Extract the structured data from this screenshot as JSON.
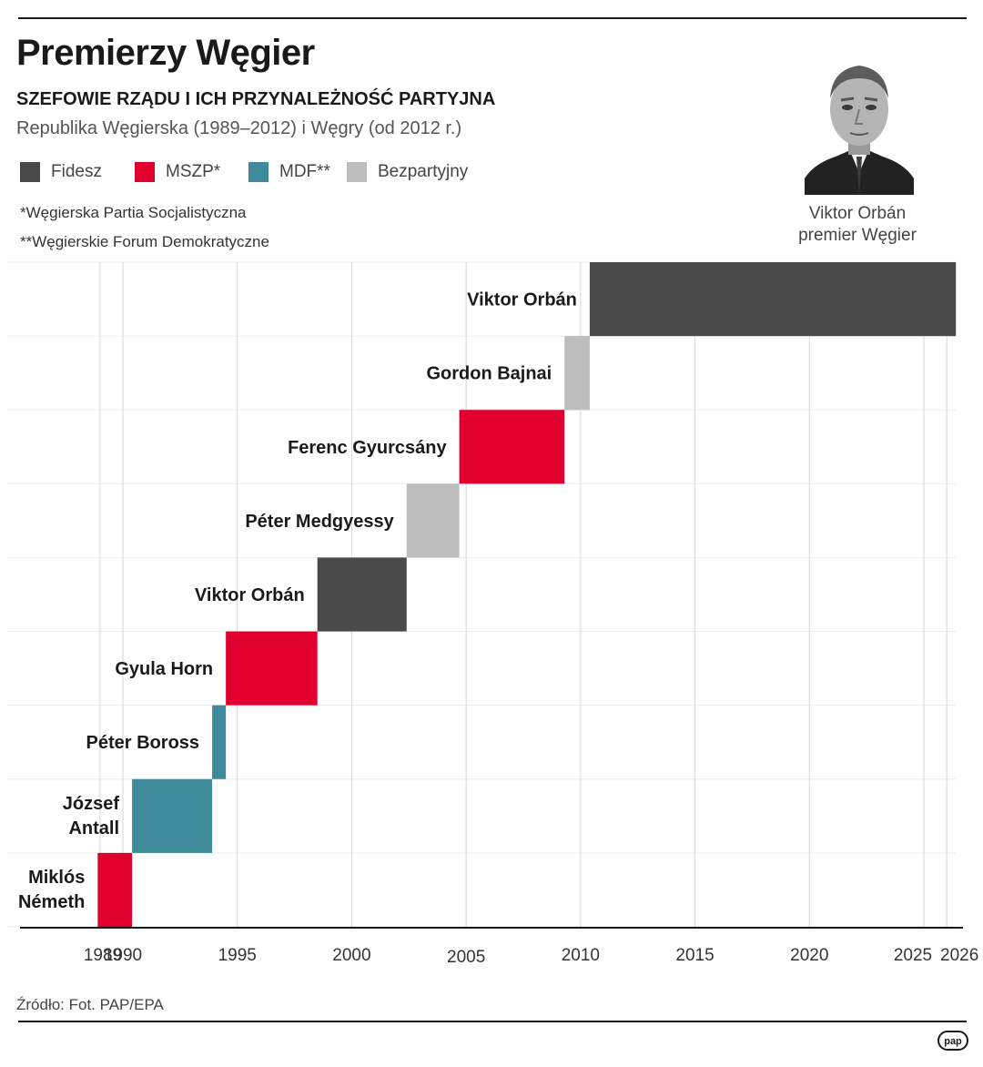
{
  "header": {
    "title": "Premierzy Węgier",
    "subtitle": "SZEFOWIE RZĄDU I ICH PRZYNALEŻNOŚĆ PARTYJNA",
    "subsubtitle": "Republika Węgierska (1989–2012) i Węgry (od 2012 r.)"
  },
  "legend": [
    {
      "label": "Fidesz",
      "color": "#4a4a4a"
    },
    {
      "label": "MSZP*",
      "color": "#e1002d"
    },
    {
      "label": "MDF**",
      "color": "#3e8a9b"
    },
    {
      "label": "Bezpartyjny",
      "color": "#bdbdbd"
    }
  ],
  "notes": {
    "note1": "*Węgierska Partia Socjalistyczna",
    "note2": "**Węgierskie Forum Demokratyczne"
  },
  "photo": {
    "name": "Viktor Orbán",
    "role": "premier Węgier"
  },
  "source": "Źródło: Fot. PAP/EPA",
  "logo": "pap",
  "chart_data": {
    "type": "bar",
    "subtype": "timeline",
    "title": "Premierzy Węgier",
    "xlabel": "",
    "ylabel": "",
    "xlim": [
      1989,
      2026
    ],
    "x_ticks": [
      1989,
      1990,
      1995,
      2000,
      2005,
      2010,
      2015,
      2020,
      2025,
      2026
    ],
    "grid": true,
    "parties": {
      "Fidesz": "#4a4a4a",
      "MSZP": "#e1002d",
      "MDF": "#3e8a9b",
      "Bezpartyjny": "#bdbdbd"
    },
    "terms": [
      {
        "name": "Miklós Németh",
        "start": 1988.9,
        "end": 1990.4,
        "party": "MSZP"
      },
      {
        "name": "József Antall",
        "start": 1990.4,
        "end": 1993.9,
        "party": "MDF"
      },
      {
        "name": "Péter Boross",
        "start": 1993.9,
        "end": 1994.5,
        "party": "MDF"
      },
      {
        "name": "Gyula Horn",
        "start": 1994.5,
        "end": 1998.5,
        "party": "MSZP"
      },
      {
        "name": "Viktor Orbán",
        "start": 1998.5,
        "end": 2002.4,
        "party": "Fidesz"
      },
      {
        "name": "Péter Medgyessy",
        "start": 2002.4,
        "end": 2004.7,
        "party": "Bezpartyjny"
      },
      {
        "name": "Ferenc Gyurcsány",
        "start": 2004.7,
        "end": 2009.3,
        "party": "MSZP"
      },
      {
        "name": "Gordon Bajnai",
        "start": 2009.3,
        "end": 2010.4,
        "party": "Bezpartyjny"
      },
      {
        "name": "Viktor Orbán",
        "start": 2010.4,
        "end": 2026.4,
        "party": "Fidesz"
      }
    ]
  }
}
